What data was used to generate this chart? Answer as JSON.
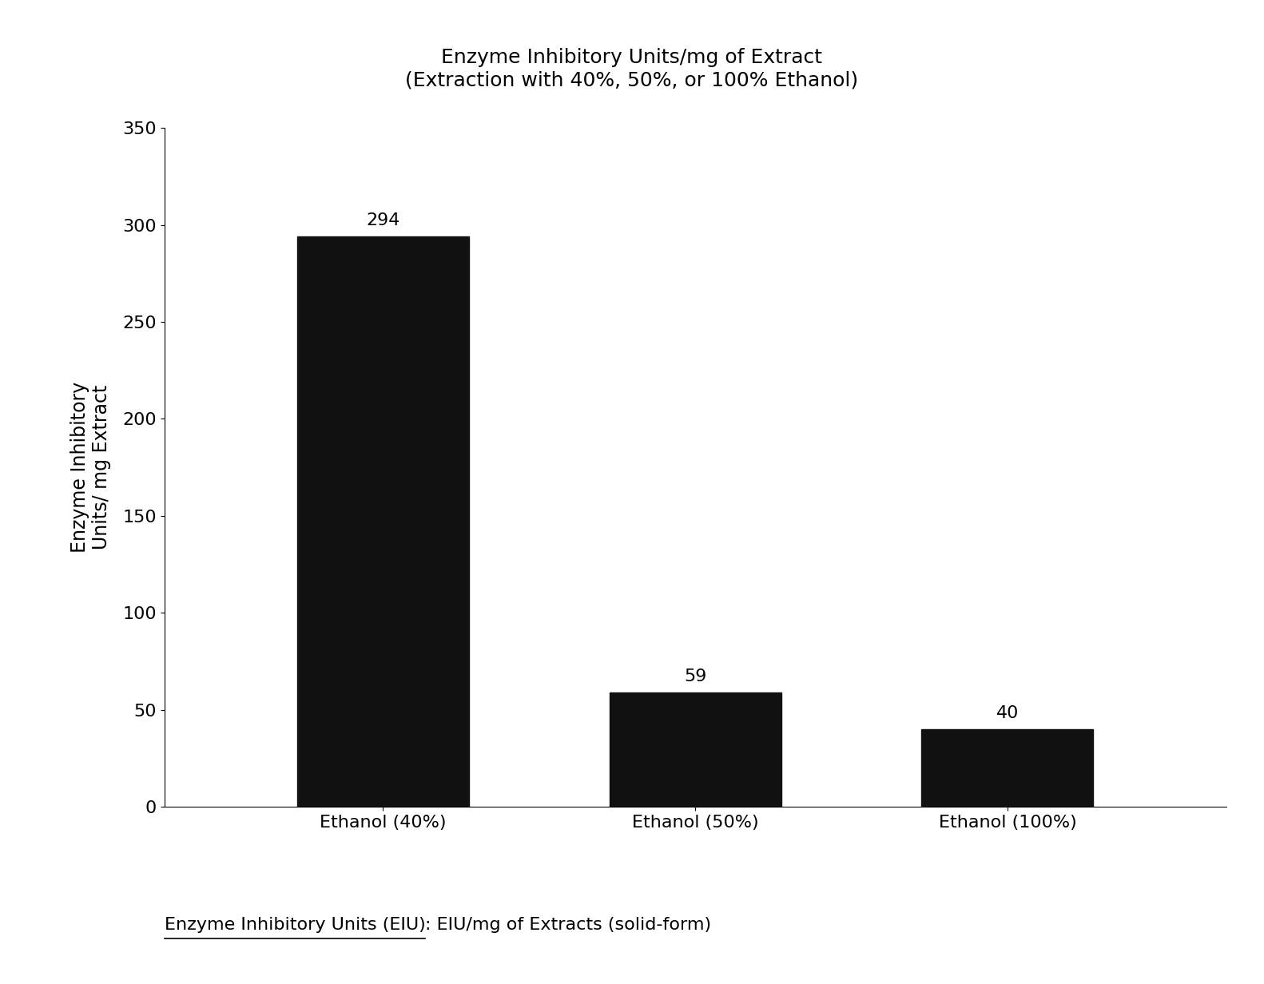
{
  "title_line1": "Enzyme Inhibitory Units/mg of Extract",
  "title_line2": "(Extraction with 40%, 50%, or 100% Ethanol)",
  "categories": [
    "Ethanol (40%)",
    "Ethanol (50%)",
    "Ethanol (100%)"
  ],
  "values": [
    294,
    59,
    40
  ],
  "bar_color": "#111111",
  "ylabel_line1": "Enzyme Inhibitory",
  "ylabel_line2": "Units/ mg Extract",
  "ylim": [
    0,
    350
  ],
  "yticks": [
    0,
    50,
    100,
    150,
    200,
    250,
    300,
    350
  ],
  "title_fontsize": 18,
  "axis_label_fontsize": 17,
  "tick_label_fontsize": 16,
  "annotation_fontsize": 16,
  "footer_text_part1": "Enzyme Inhibitory Units (EIU)",
  "footer_text_part2": ": EIU/mg of Extracts (solid-form)",
  "footer_fontsize": 16,
  "background_color": "#ffffff"
}
